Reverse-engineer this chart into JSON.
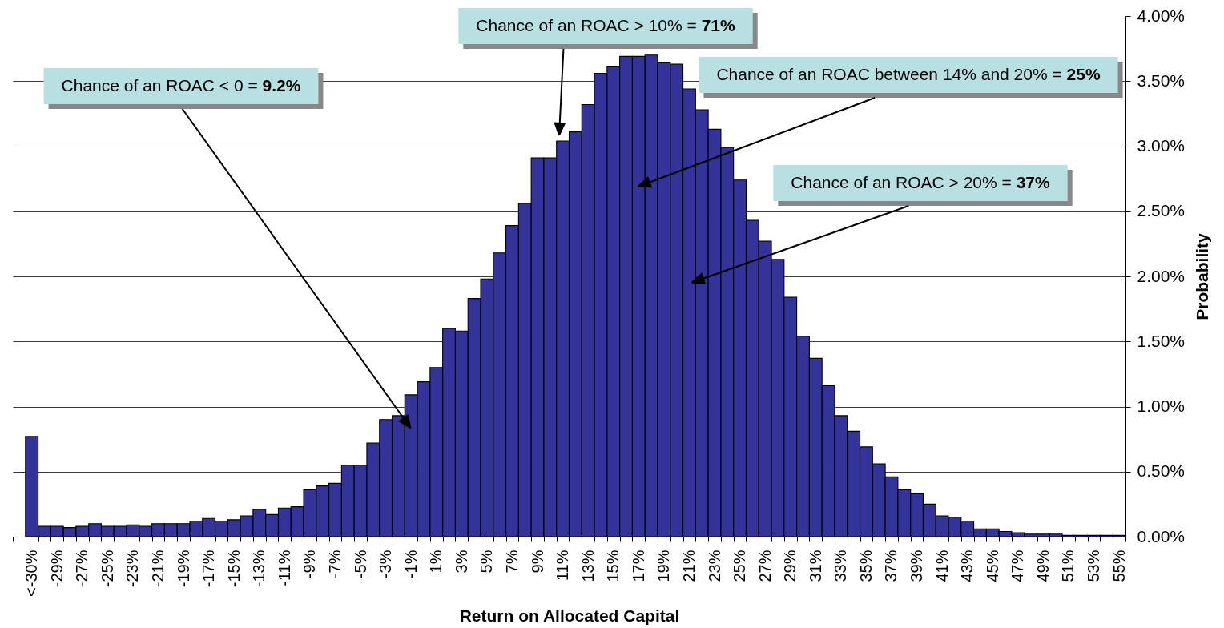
{
  "chart_data": {
    "type": "bar",
    "xlabel": "Return on Allocated Capital",
    "ylabel": "Probability",
    "categories": [
      null,
      "<-30%",
      null,
      "-29%",
      null,
      "-27%",
      null,
      "-25%",
      null,
      "-23%",
      null,
      "-21%",
      null,
      "-19%",
      null,
      "-17%",
      null,
      "-15%",
      null,
      "-13%",
      null,
      "-11%",
      null,
      "-9%",
      null,
      "-7%",
      null,
      "-5%",
      null,
      "-3%",
      null,
      "-1%",
      null,
      "1%",
      null,
      "3%",
      null,
      "5%",
      null,
      "7%",
      null,
      "9%",
      null,
      "11%",
      null,
      "13%",
      null,
      "15%",
      null,
      "17%",
      null,
      "19%",
      null,
      "21%",
      null,
      "23%",
      null,
      "25%",
      null,
      "27%",
      null,
      "29%",
      null,
      "31%",
      null,
      "33%",
      null,
      "35%",
      null,
      "37%",
      null,
      "39%",
      null,
      "41%",
      null,
      "43%",
      null,
      "45%",
      null,
      "47%",
      null,
      "49%",
      null,
      "51%",
      null,
      "53%",
      null,
      "55%"
    ],
    "values": [
      null,
      0.77,
      0.08,
      0.08,
      0.07,
      0.08,
      0.1,
      0.08,
      0.08,
      0.09,
      0.08,
      0.1,
      0.1,
      0.1,
      0.12,
      0.14,
      0.12,
      0.13,
      0.16,
      0.21,
      0.17,
      0.22,
      0.23,
      0.36,
      0.39,
      0.41,
      0.55,
      0.55,
      0.72,
      0.9,
      0.93,
      1.09,
      1.19,
      1.3,
      1.6,
      1.58,
      1.83,
      1.98,
      2.18,
      2.39,
      2.56,
      2.91,
      2.91,
      3.04,
      3.11,
      3.32,
      3.56,
      3.61,
      3.69,
      3.69,
      3.7,
      3.64,
      3.63,
      3.44,
      3.28,
      3.13,
      2.99,
      2.74,
      2.43,
      2.27,
      2.13,
      1.84,
      1.54,
      1.37,
      1.16,
      0.93,
      0.81,
      0.69,
      0.56,
      0.46,
      0.36,
      0.33,
      0.25,
      0.16,
      0.15,
      0.12,
      0.06,
      0.06,
      0.04,
      0.03,
      0.02,
      0.02,
      0.02,
      0.01,
      0.01,
      0.01,
      0.01,
      0.01
    ],
    "color": "#333399",
    "ylim": [
      0,
      4
    ],
    "yticks": [
      {
        "value": 0,
        "label": "0.00%"
      },
      {
        "value": 0.5,
        "label": "0.50%"
      },
      {
        "value": 1,
        "label": "1.00%"
      },
      {
        "value": 1.5,
        "label": "1.50%"
      },
      {
        "value": 2,
        "label": "2.00%"
      },
      {
        "value": 2.5,
        "label": "2.50%"
      },
      {
        "value": 3,
        "label": "3.00%"
      },
      {
        "value": 3.5,
        "label": "3.50%"
      },
      {
        "value": 4,
        "label": "4.00%"
      }
    ],
    "grid": "y",
    "annotations": [
      "Chance of an ROAC < 0 = 9.2%",
      "Chance of an ROAC > 10% = 71%",
      "Chance of an ROAC between 14% and 20% = 25%",
      "Chance of an ROAC > 20% = 37%"
    ]
  }
}
